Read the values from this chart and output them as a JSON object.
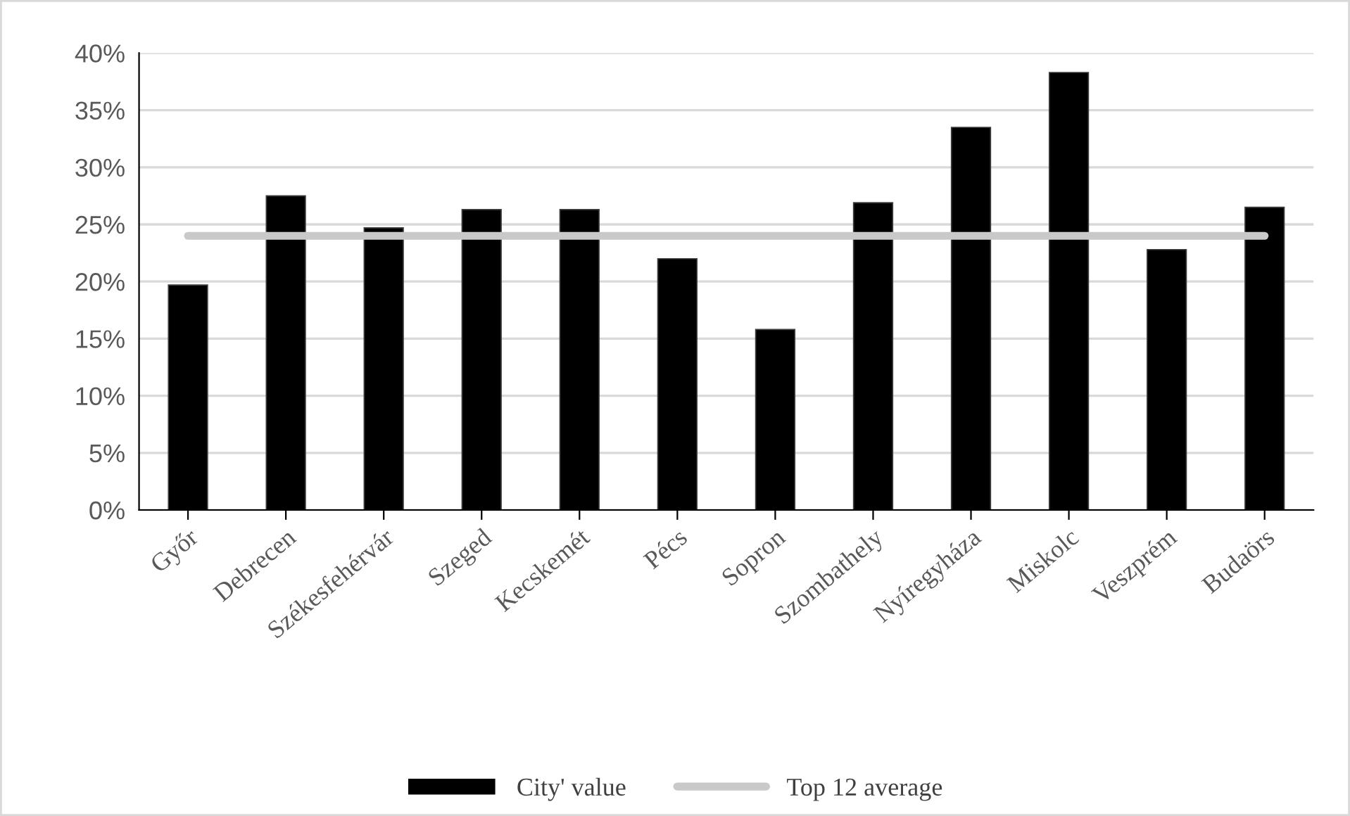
{
  "chart_data": {
    "type": "bar",
    "categories": [
      "Győr",
      "Debrecen",
      "Székesfehérvár",
      "Szeged",
      "Kecskemét",
      "Pécs",
      "Sopron",
      "Szombathely",
      "Nyíregyháza",
      "Miskolc",
      "Veszprém",
      "Budaörs"
    ],
    "series": [
      {
        "name": "City' value",
        "color": "#000000",
        "values": [
          19.7,
          27.5,
          24.7,
          26.3,
          26.3,
          22.0,
          15.8,
          26.9,
          33.5,
          38.3,
          22.8,
          26.5
        ]
      },
      {
        "name": "Top 12 average",
        "color": "#c9c9c9",
        "type": "line",
        "values": [
          24.0,
          24.0,
          24.0,
          24.0,
          24.0,
          24.0,
          24.0,
          24.0,
          24.0,
          24.0,
          24.0,
          24.0
        ]
      }
    ],
    "ylim": [
      0,
      40
    ],
    "yticks": [
      {
        "value": 0,
        "label": "0%"
      },
      {
        "value": 5,
        "label": "5%"
      },
      {
        "value": 10,
        "label": "10%"
      },
      {
        "value": 15,
        "label": "15%"
      },
      {
        "value": 20,
        "label": "20%"
      },
      {
        "value": 25,
        "label": "25%"
      },
      {
        "value": 30,
        "label": "30%"
      },
      {
        "value": 35,
        "label": "35%"
      },
      {
        "value": 40,
        "label": "40%"
      }
    ],
    "grid": "y",
    "legend": "bottom"
  }
}
